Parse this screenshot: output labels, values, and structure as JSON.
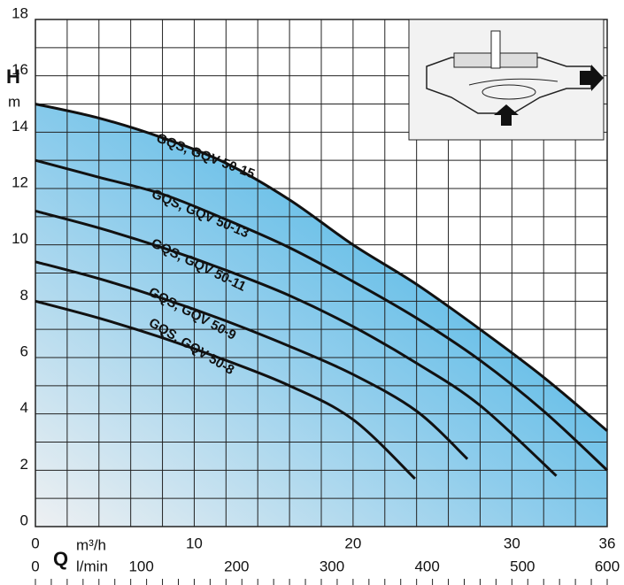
{
  "chart_data": {
    "type": "line",
    "x_label": "Q",
    "x_unit": "m³/h",
    "x2_unit": "l/min",
    "y_label": "H",
    "y_unit": "m",
    "xlim": [
      0,
      36
    ],
    "xticks": [
      0,
      10,
      20,
      30,
      36
    ],
    "x2lim": [
      0,
      600
    ],
    "x2ticks": [
      0,
      100,
      200,
      300,
      400,
      500,
      600
    ],
    "ylim": [
      0,
      18
    ],
    "yticks": [
      0,
      2,
      4,
      6,
      8,
      10,
      12,
      14,
      16,
      18
    ],
    "xgrid": [
      0,
      2,
      4,
      6,
      8,
      10,
      12,
      14,
      16,
      18,
      20,
      22,
      24,
      26,
      28,
      30,
      32,
      34,
      36
    ],
    "ygrid": [
      0,
      1,
      2,
      3,
      4,
      5,
      6,
      7,
      8,
      9,
      10,
      11,
      12,
      13,
      14,
      15,
      16,
      17,
      18
    ],
    "x_minor_ticks": [
      0,
      1,
      2,
      3,
      4,
      5,
      6,
      7,
      8,
      9,
      10,
      11,
      12,
      13,
      14,
      15,
      16,
      17,
      18,
      19,
      20,
      21,
      22,
      23,
      24,
      25,
      26,
      27,
      28,
      29,
      30,
      31,
      32,
      33,
      34,
      35,
      36
    ],
    "grid": true,
    "series": [
      {
        "name": "GQS, GQV 50-15",
        "color": "#111111",
        "x": [
          0,
          4,
          8,
          12,
          16,
          20,
          24,
          28,
          32,
          36
        ],
        "values": [
          15,
          14.5,
          13.8,
          12.9,
          11.6,
          10.0,
          8.6,
          7.0,
          5.3,
          3.4
        ]
      },
      {
        "name": "GQS, GQV 50-13",
        "color": "#111111",
        "x": [
          0,
          4,
          8,
          12,
          16,
          20,
          24,
          28,
          32,
          36
        ],
        "values": [
          13,
          12.4,
          11.8,
          10.9,
          9.9,
          8.7,
          7.4,
          5.9,
          4.1,
          2.0
        ]
      },
      {
        "name": "GQS, GQV 50-11",
        "color": "#111111",
        "x": [
          0,
          4,
          8,
          12,
          16,
          20,
          24,
          28,
          32.8
        ],
        "values": [
          11.2,
          10.6,
          9.9,
          9.1,
          8.2,
          7.1,
          5.8,
          4.3,
          1.8
        ]
      },
      {
        "name": "GQS, GQV 50-9",
        "color": "#111111",
        "x": [
          0,
          4,
          8,
          12,
          16,
          20,
          24,
          27.2
        ],
        "values": [
          9.4,
          8.8,
          8.1,
          7.3,
          6.4,
          5.4,
          4.1,
          2.4
        ]
      },
      {
        "name": "GQS, GQV 50-8",
        "color": "#111111",
        "x": [
          0,
          4,
          8,
          12,
          16,
          20,
          23.9
        ],
        "values": [
          8.0,
          7.4,
          6.7,
          5.9,
          5.0,
          3.8,
          1.7
        ]
      }
    ]
  }
}
